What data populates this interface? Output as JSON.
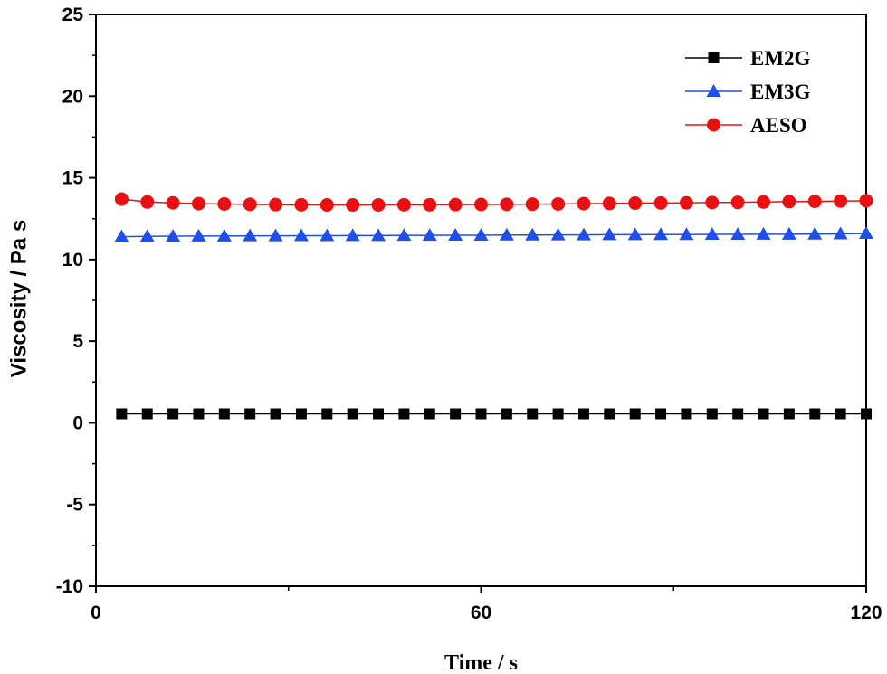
{
  "chart_data": {
    "type": "line",
    "title": "",
    "xlabel": "Time / s",
    "ylabel": "Viscosity / Pa s",
    "xlim": [
      0,
      120
    ],
    "ylim": [
      -10,
      25
    ],
    "x_ticks": [
      0,
      60,
      120
    ],
    "y_ticks": [
      -10,
      -5,
      0,
      5,
      10,
      15,
      20,
      25
    ],
    "grid": false,
    "legend_position": "top-right",
    "x": [
      4,
      8,
      12,
      16,
      20,
      24,
      28,
      32,
      36,
      40,
      44,
      48,
      52,
      56,
      60,
      64,
      68,
      72,
      76,
      80,
      84,
      88,
      92,
      96,
      100,
      104,
      108,
      112,
      116,
      120
    ],
    "series": [
      {
        "name": "EM2G",
        "color": "#000000",
        "marker": "square",
        "values": [
          0.55,
          0.55,
          0.55,
          0.55,
          0.55,
          0.55,
          0.55,
          0.55,
          0.55,
          0.55,
          0.55,
          0.55,
          0.55,
          0.55,
          0.55,
          0.55,
          0.55,
          0.55,
          0.55,
          0.55,
          0.55,
          0.55,
          0.55,
          0.55,
          0.55,
          0.55,
          0.55,
          0.55,
          0.55,
          0.55
        ]
      },
      {
        "name": "EM3G",
        "color": "#1f4fe6",
        "marker": "triangle",
        "values": [
          11.4,
          11.42,
          11.43,
          11.44,
          11.44,
          11.45,
          11.45,
          11.46,
          11.46,
          11.47,
          11.47,
          11.48,
          11.48,
          11.49,
          11.49,
          11.5,
          11.5,
          11.51,
          11.51,
          11.52,
          11.52,
          11.53,
          11.53,
          11.54,
          11.54,
          11.55,
          11.55,
          11.56,
          11.57,
          11.6
        ]
      },
      {
        "name": "AESO",
        "color": "#e81010",
        "marker": "circle",
        "values": [
          13.7,
          13.52,
          13.47,
          13.42,
          13.4,
          13.38,
          13.36,
          13.35,
          13.34,
          13.34,
          13.34,
          13.35,
          13.35,
          13.36,
          13.37,
          13.38,
          13.39,
          13.4,
          13.42,
          13.43,
          13.45,
          13.46,
          13.47,
          13.49,
          13.5,
          13.52,
          13.54,
          13.56,
          13.58,
          13.6
        ]
      }
    ]
  }
}
